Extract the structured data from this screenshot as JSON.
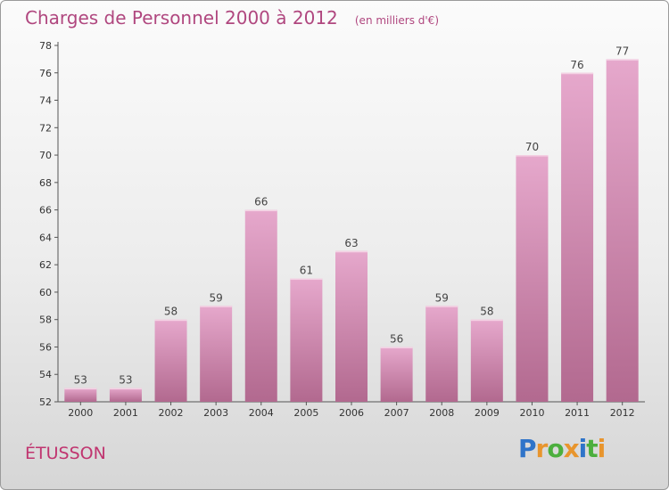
{
  "header": {
    "title": "Charges de Personnel 2000 à 2012",
    "subtitle": "(en milliers d'€)"
  },
  "commune": "ÉTUSSON",
  "brand": {
    "name": "Proxiti",
    "letters": [
      {
        "ch": "P",
        "color": "#2f74c9"
      },
      {
        "ch": "r",
        "color": "#e8952d"
      },
      {
        "ch": "o",
        "color": "#4caf3e"
      },
      {
        "ch": "x",
        "color": "#e8952d"
      },
      {
        "ch": "i",
        "color": "#2f74c9"
      },
      {
        "ch": "t",
        "color": "#4caf3e"
      },
      {
        "ch": "i",
        "color": "#e8952d"
      }
    ]
  },
  "chart_data": {
    "type": "bar",
    "title": "Charges de Personnel 2000 à 2012",
    "subtitle": "(en milliers d'€)",
    "categories": [
      "2000",
      "2001",
      "2002",
      "2003",
      "2004",
      "2005",
      "2006",
      "2007",
      "2008",
      "2009",
      "2010",
      "2011",
      "2012"
    ],
    "values": [
      53,
      53,
      58,
      59,
      66,
      61,
      63,
      56,
      59,
      58,
      70,
      76,
      77
    ],
    "ylim": [
      52,
      78
    ],
    "yticks": [
      52,
      54,
      56,
      58,
      60,
      62,
      64,
      66,
      68,
      70,
      72,
      74,
      76,
      78
    ],
    "grid": false,
    "bar_color_top": "#e6a8cc",
    "bar_color_bottom": "#b2698f",
    "label_color": "#444444",
    "axis_color": "#555555"
  }
}
